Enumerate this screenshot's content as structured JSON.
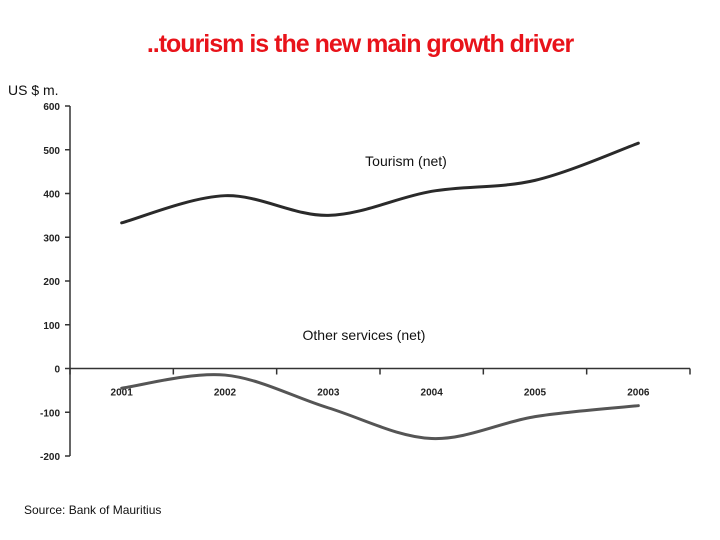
{
  "title": "..tourism is the new main growth driver",
  "yunit": "US $ m.",
  "source": "Source: Bank of Mauritius",
  "chart_data": {
    "type": "line",
    "x": [
      "2001",
      "2002",
      "2003",
      "2004",
      "2005",
      "2006"
    ],
    "ylim": [
      -200,
      600
    ],
    "yticks": [
      "600",
      "500",
      "400",
      "300",
      "200",
      "100",
      "0",
      "-100",
      "-200"
    ],
    "ytick_values": [
      600,
      500,
      400,
      300,
      200,
      100,
      0,
      -100,
      -200
    ],
    "grid": false,
    "series": [
      {
        "name": "Tourism (net)",
        "values": [
          333,
          395,
          350,
          405,
          430,
          515
        ],
        "color": "#2a2a2a"
      },
      {
        "name": "Other services (net)",
        "values": [
          -45,
          -15,
          -90,
          -160,
          -110,
          -85
        ],
        "color": "#555555"
      }
    ]
  }
}
